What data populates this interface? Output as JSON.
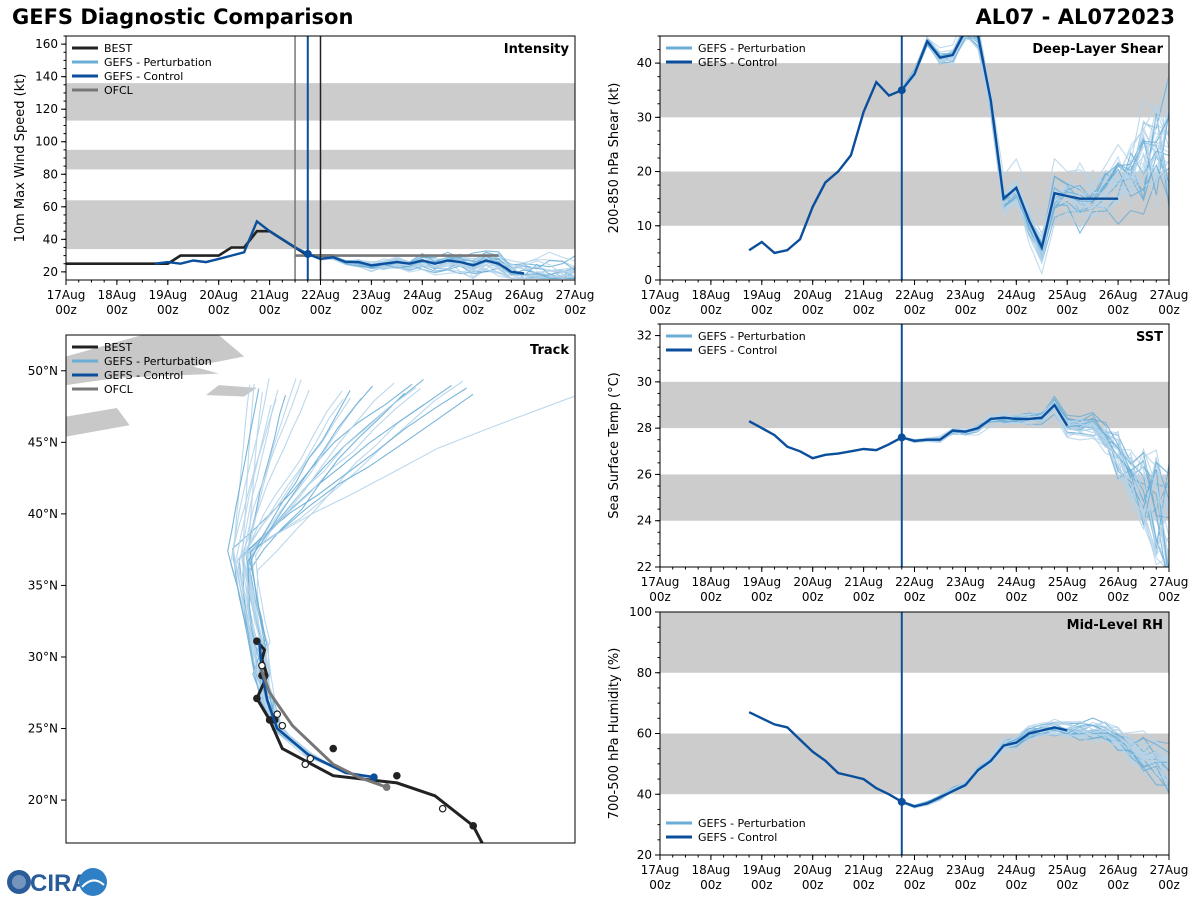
{
  "page": {
    "title": "GEFS Diagnostic Comparison",
    "storm_id": "AL07 - AL072023",
    "logo_text": "CIRA"
  },
  "colors": {
    "best": "#222222",
    "perturbation": "#6aaed6",
    "perturbation_light": "#b5d4ea",
    "control": "#0b4f9c",
    "ofcl": "#777777",
    "band": "#cccccc",
    "land": "#c8c8c8"
  },
  "time_axis": {
    "labels": [
      "17Aug\n00z",
      "18Aug\n00z",
      "19Aug\n00z",
      "20Aug\n00z",
      "21Aug\n00z",
      "22Aug\n00z",
      "23Aug\n00z",
      "24Aug\n00z",
      "25Aug\n00z",
      "26Aug\n00z",
      "27Aug\n00z"
    ],
    "range_days": [
      0,
      10
    ]
  },
  "chart_data": [
    {
      "id": "intensity",
      "type": "line",
      "title": "Intensity",
      "ylabel": "10m Max Wind Speed (kt)",
      "xlim": [
        0,
        10
      ],
      "ylim": [
        15,
        165
      ],
      "yticks": [
        20,
        40,
        60,
        80,
        100,
        120,
        140,
        160
      ],
      "bands": [
        [
          34,
          64
        ],
        [
          83,
          95
        ],
        [
          113,
          136
        ]
      ],
      "vlines": [
        {
          "x": 4.5,
          "series": "ofcl"
        },
        {
          "x": 4.75,
          "series": "control"
        },
        {
          "x": 5.0,
          "series": "best"
        }
      ],
      "legend": [
        "BEST",
        "GEFS - Perturbation",
        "GEFS - Control",
        "OFCL"
      ],
      "series": [
        {
          "name": "BEST",
          "key": "best",
          "x": [
            0,
            1,
            2,
            2.25,
            2.5,
            2.75,
            3,
            3.25,
            3.5,
            3.75,
            4,
            4.25,
            4.5,
            4.75,
            5,
            5.25
          ],
          "y": [
            25,
            25,
            25,
            30,
            30,
            30,
            30,
            35,
            35,
            45,
            45,
            40,
            35,
            30,
            30,
            30
          ]
        },
        {
          "name": "OFCL",
          "key": "ofcl",
          "x": [
            4.5,
            4.75,
            5,
            5.5,
            6,
            6.5,
            7,
            7.5,
            8,
            8.5
          ],
          "y": [
            30,
            30,
            30,
            30,
            30,
            30,
            30,
            30,
            30,
            30
          ]
        },
        {
          "name": "GEFS - Control",
          "key": "control",
          "x": [
            1.75,
            2,
            2.25,
            2.5,
            2.75,
            3,
            3.25,
            3.5,
            3.75,
            4,
            4.25,
            4.5,
            4.75,
            5,
            5.25,
            5.5,
            5.75,
            6,
            6.25,
            6.5,
            6.75,
            7,
            7.25,
            7.5,
            7.75,
            8,
            8.25,
            8.5,
            8.75,
            9
          ],
          "y": [
            25,
            26,
            25,
            27,
            26,
            28,
            30,
            32,
            51,
            45,
            40,
            35,
            31,
            28,
            29,
            26,
            26,
            24,
            25,
            26,
            25,
            27,
            25,
            27,
            26,
            24,
            27,
            25,
            20,
            19
          ]
        }
      ]
    },
    {
      "id": "shear",
      "type": "line",
      "title": "Deep-Layer Shear",
      "ylabel": "200-850 hPa Shear (kt)",
      "xlim": [
        0,
        10
      ],
      "ylim": [
        0,
        45
      ],
      "yticks": [
        0,
        10,
        20,
        30,
        40
      ],
      "bands": [
        [
          10,
          20
        ],
        [
          30,
          40
        ]
      ],
      "vlines": [
        {
          "x": 4.75,
          "series": "control"
        }
      ],
      "legend": [
        "GEFS - Perturbation",
        "GEFS - Control"
      ],
      "series": [
        {
          "name": "GEFS - Control",
          "key": "control",
          "x": [
            1.75,
            2,
            2.25,
            2.5,
            2.75,
            3,
            3.25,
            3.5,
            3.75,
            4,
            4.25,
            4.5,
            4.75,
            5,
            5.25,
            5.5,
            5.75,
            6,
            6.25,
            6.5,
            6.75,
            7,
            7.25,
            7.5,
            7.75,
            8,
            8.25,
            8.5,
            8.75,
            9
          ],
          "y": [
            5.5,
            7,
            5,
            5.5,
            7.5,
            13.5,
            18,
            20,
            23,
            31,
            36.5,
            34,
            35,
            38,
            44,
            41,
            41.5,
            46,
            45,
            33,
            15,
            17,
            11,
            6,
            16,
            15.5,
            15,
            15,
            15,
            15
          ]
        }
      ]
    },
    {
      "id": "track",
      "type": "scatter",
      "title": "Track",
      "xlim": [
        -66,
        -46
      ],
      "ylim": [
        17,
        52.5
      ],
      "yticks": [
        20,
        25,
        30,
        35,
        40,
        45,
        50
      ],
      "ytick_labels": [
        "20°N",
        "25°N",
        "30°N",
        "35°N",
        "40°N",
        "45°N",
        "50°N"
      ],
      "legend": [
        "BEST",
        "GEFS - Perturbation",
        "GEFS - Control",
        "OFCL"
      ],
      "series": [
        {
          "name": "BEST",
          "key": "best",
          "lon": [
            -49.5,
            -50,
            -51.5,
            -53,
            -55.5,
            -57.5,
            -58,
            -58.5,
            -58.1,
            -58.3,
            -58.2,
            -58.5
          ],
          "lat": [
            16.5,
            18.2,
            20.3,
            21.2,
            21.7,
            23.6,
            25.6,
            27.1,
            28.7,
            29.8,
            30.5,
            31.1
          ],
          "markers": [
            [
              -50,
              18.2
            ],
            [
              -53,
              21.7
            ],
            [
              -55.5,
              23.6
            ],
            [
              -58,
              25.6
            ],
            [
              -58.3,
              28.7
            ],
            [
              -58.5,
              31.1
            ],
            [
              -57.8,
              25.6
            ],
            [
              -58.5,
              27.1
            ]
          ]
        },
        {
          "name": "GEFS - Control",
          "key": "control",
          "lon": [
            -53.9,
            -55,
            -56.5,
            -57.7,
            -58.1,
            -58.3,
            -58.4
          ],
          "lat": [
            21.6,
            21.9,
            23.2,
            25,
            27,
            29,
            31
          ],
          "markers": [
            [
              -53.9,
              21.6
            ]
          ]
        },
        {
          "name": "OFCL",
          "key": "ofcl",
          "lon": [
            -53.4,
            -54.5,
            -55.5,
            -57.1,
            -58.0,
            -58.4
          ],
          "lat": [
            20.9,
            21.6,
            22.5,
            25.2,
            27.5,
            29.5
          ],
          "markers": [
            [
              -53.4,
              20.9
            ]
          ]
        }
      ],
      "ofcl_open_markers": [
        [
          -51.2,
          19.4
        ],
        [
          -56.4,
          22.9
        ],
        [
          -56.6,
          22.5
        ],
        [
          -57.5,
          25.2
        ],
        [
          -57.7,
          26
        ],
        [
          -58.3,
          29.4
        ]
      ]
    },
    {
      "id": "sst",
      "type": "line",
      "title": "SST",
      "ylabel": "Sea Surface Temp (°C)",
      "xlim": [
        0,
        10
      ],
      "ylim": [
        22,
        32.5
      ],
      "yticks": [
        22,
        24,
        26,
        28,
        30,
        32
      ],
      "bands": [
        [
          24,
          26
        ],
        [
          28,
          30
        ]
      ],
      "vlines": [
        {
          "x": 4.75,
          "series": "control"
        }
      ],
      "legend": [
        "GEFS - Perturbation",
        "GEFS - Control"
      ],
      "series": [
        {
          "name": "GEFS - Control",
          "key": "control",
          "x": [
            1.75,
            2,
            2.25,
            2.5,
            2.75,
            3,
            3.25,
            3.5,
            3.75,
            4,
            4.25,
            4.5,
            4.75,
            5,
            5.25,
            5.5,
            5.75,
            6,
            6.25,
            6.5,
            6.75,
            7,
            7.25,
            7.5,
            7.75,
            8
          ],
          "y": [
            28.3,
            28,
            27.7,
            27.2,
            27,
            26.7,
            26.85,
            26.9,
            27,
            27.1,
            27.05,
            27.3,
            27.6,
            27.45,
            27.5,
            27.5,
            27.9,
            27.85,
            28,
            28.4,
            28.45,
            28.4,
            28.4,
            28.45,
            29,
            28.1
          ]
        }
      ]
    },
    {
      "id": "rh",
      "type": "line",
      "title": "Mid-Level RH",
      "ylabel": "700-500 hPa Humidity (%)",
      "xlim": [
        0,
        10
      ],
      "ylim": [
        20,
        100
      ],
      "yticks": [
        20,
        40,
        60,
        80,
        100
      ],
      "bands": [
        [
          40,
          60
        ],
        [
          80,
          100
        ]
      ],
      "vlines": [
        {
          "x": 4.75,
          "series": "control"
        }
      ],
      "legend": [
        "GEFS - Perturbation",
        "GEFS - Control"
      ],
      "series": [
        {
          "name": "GEFS - Control",
          "key": "control",
          "x": [
            1.75,
            2,
            2.25,
            2.5,
            2.75,
            3,
            3.25,
            3.5,
            3.75,
            4,
            4.25,
            4.5,
            4.75,
            5,
            5.25,
            5.5,
            5.75,
            6,
            6.25,
            6.5,
            6.75,
            7,
            7.25,
            7.5,
            7.75,
            8
          ],
          "y": [
            67,
            65,
            63,
            62,
            58,
            54,
            51,
            47,
            46,
            45,
            42,
            40,
            37.5,
            36,
            37,
            39,
            41,
            43,
            48,
            51,
            56,
            57,
            60,
            61,
            62,
            61
          ]
        }
      ]
    }
  ]
}
